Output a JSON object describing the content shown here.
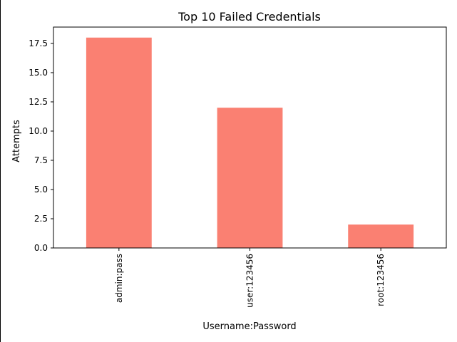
{
  "chart_data": {
    "type": "bar",
    "title": "Top 10 Failed Credentials",
    "xlabel": "Username:Password",
    "ylabel": "Attempts",
    "categories": [
      "admin:pass",
      "user:123456",
      "root:123456"
    ],
    "values": [
      18,
      12,
      2
    ],
    "ylim": [
      0,
      18.9
    ],
    "yticks": [
      "0.0",
      "2.5",
      "5.0",
      "7.5",
      "10.0",
      "12.5",
      "15.0",
      "17.5"
    ],
    "bar_color": "#fa8072",
    "grid": false,
    "legend": "none"
  }
}
